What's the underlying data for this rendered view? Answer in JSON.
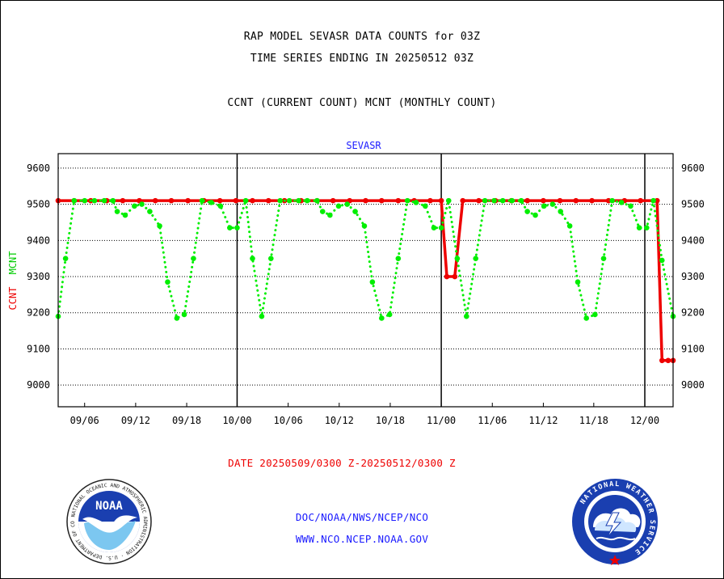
{
  "header": {
    "title_line1": "RAP MODEL SEVASR DATA COUNTS for 03Z",
    "title_line2": "TIME SERIES ENDING IN 20250512 03Z",
    "subtitle": "CCNT (CURRENT COUNT) MCNT (MONTHLY COUNT)"
  },
  "footer": {
    "date_range": "DATE 20250509/0300 Z-20250512/0300 Z",
    "link1": "DOC/NOAA/NWS/NCEP/NCO",
    "link2": "WWW.NCO.NCEP.NOAA.GOV"
  },
  "logos": {
    "noaa": "NOAA",
    "noaa_ring": "NATIONAL OCEANIC AND ATMOSPHERIC ADMINISTRATION · U.S. DEPARTMENT OF COMMERCE",
    "nws_ring": "NATIONAL WEATHER SERVICE"
  },
  "chart_data": {
    "type": "line",
    "title": "SEVASR",
    "ylabel_parts": [
      {
        "text": "CCNT",
        "color": "#ee0000"
      },
      {
        "text": "MCNT",
        "color": "#00cc00"
      }
    ],
    "ylim": [
      8940,
      9640
    ],
    "yticks": [
      9000,
      9100,
      9200,
      9300,
      9400,
      9500,
      9600
    ],
    "xlim": [
      0,
      100
    ],
    "xticks": [
      {
        "x": 4.3,
        "label": "09/06"
      },
      {
        "x": 12.6,
        "label": "09/12"
      },
      {
        "x": 20.9,
        "label": "09/18"
      },
      {
        "x": 29.1,
        "label": "10/00"
      },
      {
        "x": 37.4,
        "label": "10/06"
      },
      {
        "x": 45.7,
        "label": "10/12"
      },
      {
        "x": 54.0,
        "label": "10/18"
      },
      {
        "x": 62.3,
        "label": "11/00"
      },
      {
        "x": 70.6,
        "label": "11/06"
      },
      {
        "x": 78.9,
        "label": "11/12"
      },
      {
        "x": 87.1,
        "label": "11/18"
      },
      {
        "x": 95.4,
        "label": "12/00"
      }
    ],
    "day_boundaries": [
      29.1,
      62.3,
      95.4
    ],
    "grid": true,
    "series": [
      {
        "name": "CCNT",
        "color": "#ee0000",
        "style": "solid",
        "points": [
          [
            0,
            9510
          ],
          [
            2.6,
            9510
          ],
          [
            5.3,
            9510
          ],
          [
            7.9,
            9510
          ],
          [
            10.5,
            9510
          ],
          [
            13.2,
            9510
          ],
          [
            15.8,
            9510
          ],
          [
            18.4,
            9510
          ],
          [
            21.1,
            9510
          ],
          [
            23.7,
            9510
          ],
          [
            26.3,
            9510
          ],
          [
            28.9,
            9510
          ],
          [
            31.6,
            9510
          ],
          [
            34.2,
            9510
          ],
          [
            36.8,
            9510
          ],
          [
            39.5,
            9510
          ],
          [
            42.1,
            9510
          ],
          [
            44.7,
            9510
          ],
          [
            47.4,
            9510
          ],
          [
            50.0,
            9510
          ],
          [
            52.6,
            9510
          ],
          [
            55.3,
            9510
          ],
          [
            57.9,
            9510
          ],
          [
            60.5,
            9510
          ],
          [
            62.3,
            9510
          ],
          [
            63.2,
            9300
          ],
          [
            64.5,
            9300
          ],
          [
            65.8,
            9510
          ],
          [
            68.4,
            9510
          ],
          [
            71.1,
            9510
          ],
          [
            73.7,
            9510
          ],
          [
            76.3,
            9510
          ],
          [
            78.9,
            9510
          ],
          [
            81.6,
            9510
          ],
          [
            84.2,
            9510
          ],
          [
            86.8,
            9510
          ],
          [
            89.5,
            9510
          ],
          [
            92.1,
            9510
          ],
          [
            94.7,
            9510
          ],
          [
            97.4,
            9510
          ],
          [
            98.2,
            9068
          ],
          [
            99.2,
            9068
          ],
          [
            100,
            9068
          ]
        ]
      },
      {
        "name": "MCNT",
        "color": "#00ee00",
        "style": "dotted",
        "points": [
          [
            0,
            9190
          ],
          [
            1.2,
            9350
          ],
          [
            2.6,
            9510
          ],
          [
            4.3,
            9510
          ],
          [
            5.9,
            9510
          ],
          [
            7.5,
            9510
          ],
          [
            8.9,
            9510
          ],
          [
            9.6,
            9480
          ],
          [
            10.9,
            9470
          ],
          [
            12.4,
            9495
          ],
          [
            13.6,
            9500
          ],
          [
            14.9,
            9480
          ],
          [
            16.5,
            9440
          ],
          [
            17.8,
            9285
          ],
          [
            19.3,
            9185
          ],
          [
            20.5,
            9195
          ],
          [
            22.0,
            9350
          ],
          [
            23.4,
            9510
          ],
          [
            24.9,
            9505
          ],
          [
            26.4,
            9495
          ],
          [
            27.9,
            9435
          ],
          [
            29.1,
            9435
          ],
          [
            30.5,
            9510
          ],
          [
            31.6,
            9350
          ],
          [
            33.1,
            9190
          ],
          [
            34.6,
            9350
          ],
          [
            36.1,
            9510
          ],
          [
            37.6,
            9510
          ],
          [
            39.1,
            9510
          ],
          [
            40.5,
            9510
          ],
          [
            42.1,
            9510
          ],
          [
            43.0,
            9480
          ],
          [
            44.2,
            9470
          ],
          [
            45.6,
            9495
          ],
          [
            47.0,
            9500
          ],
          [
            48.3,
            9480
          ],
          [
            49.8,
            9440
          ],
          [
            51.1,
            9285
          ],
          [
            52.6,
            9185
          ],
          [
            53.9,
            9195
          ],
          [
            55.3,
            9350
          ],
          [
            56.8,
            9510
          ],
          [
            58.2,
            9505
          ],
          [
            59.7,
            9495
          ],
          [
            61.1,
            9435
          ],
          [
            62.3,
            9435
          ],
          [
            63.5,
            9510
          ],
          [
            64.9,
            9350
          ],
          [
            66.4,
            9190
          ],
          [
            67.9,
            9350
          ],
          [
            69.4,
            9510
          ],
          [
            70.9,
            9510
          ],
          [
            72.3,
            9510
          ],
          [
            73.8,
            9510
          ],
          [
            75.3,
            9510
          ],
          [
            76.3,
            9480
          ],
          [
            77.6,
            9470
          ],
          [
            79.0,
            9495
          ],
          [
            80.4,
            9500
          ],
          [
            81.7,
            9480
          ],
          [
            83.2,
            9440
          ],
          [
            84.5,
            9285
          ],
          [
            85.9,
            9185
          ],
          [
            87.3,
            9195
          ],
          [
            88.7,
            9350
          ],
          [
            90.1,
            9510
          ],
          [
            91.6,
            9505
          ],
          [
            93.1,
            9495
          ],
          [
            94.5,
            9435
          ],
          [
            95.7,
            9435
          ],
          [
            96.8,
            9510
          ],
          [
            98.2,
            9345
          ],
          [
            100,
            9190
          ]
        ]
      }
    ]
  }
}
